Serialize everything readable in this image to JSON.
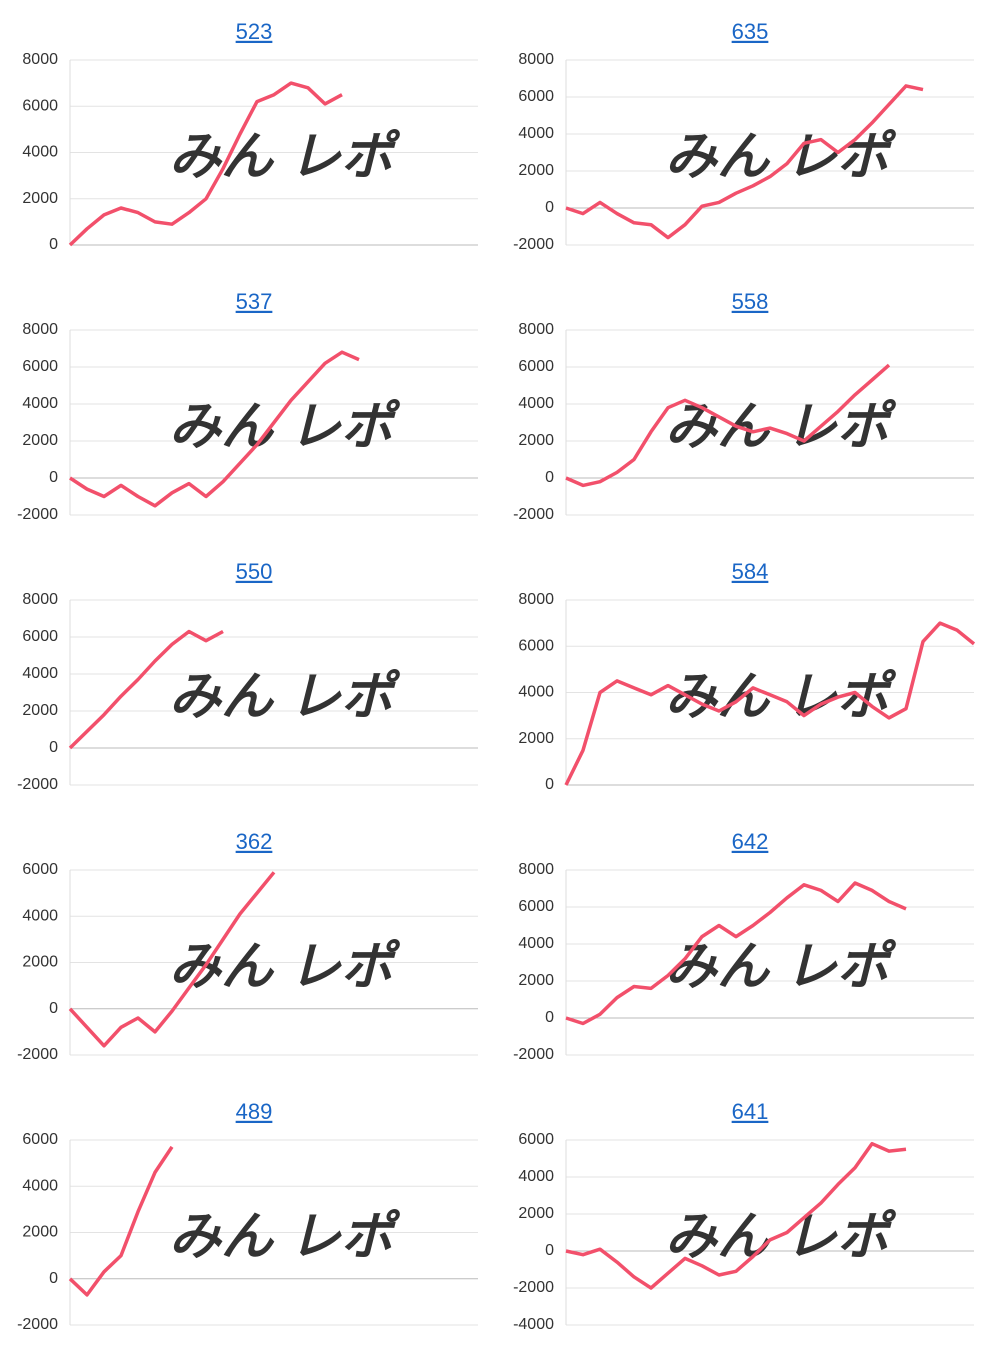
{
  "watermark": [
    "みん",
    "レポ"
  ],
  "chart_data": [
    {
      "type": "line",
      "title": "523",
      "color": "#f2506b",
      "ylim": [
        0,
        8000
      ],
      "yticks": [
        0,
        2000,
        4000,
        6000,
        8000
      ],
      "grid": true,
      "values": [
        0,
        700,
        1300,
        1600,
        1400,
        1000,
        900,
        1400,
        2000,
        3300,
        4800,
        6200,
        6500,
        7000,
        6800,
        6100,
        6500,
        null,
        null,
        null,
        null,
        null,
        null,
        null,
        null
      ]
    },
    {
      "type": "line",
      "title": "635",
      "color": "#f2506b",
      "ylim": [
        -2000,
        8000
      ],
      "yticks": [
        -2000,
        0,
        2000,
        4000,
        6000,
        8000
      ],
      "grid": true,
      "values": [
        0,
        -300,
        300,
        -300,
        -800,
        -900,
        -1600,
        -900,
        100,
        300,
        800,
        1200,
        1700,
        2400,
        3500,
        3700,
        3000,
        3700,
        4600,
        5600,
        6600,
        6400,
        null,
        null,
        null
      ]
    },
    {
      "type": "line",
      "title": "537",
      "color": "#f2506b",
      "ylim": [
        -2000,
        8000
      ],
      "yticks": [
        -2000,
        0,
        2000,
        4000,
        6000,
        8000
      ],
      "grid": true,
      "values": [
        0,
        -600,
        -1000,
        -400,
        -1000,
        -1500,
        -800,
        -300,
        -1000,
        -200,
        800,
        1800,
        3000,
        4200,
        5200,
        6200,
        6800,
        6400,
        null,
        null,
        null,
        null,
        null,
        null,
        null
      ]
    },
    {
      "type": "line",
      "title": "558",
      "color": "#f2506b",
      "ylim": [
        -2000,
        8000
      ],
      "yticks": [
        -2000,
        0,
        2000,
        4000,
        6000,
        8000
      ],
      "grid": true,
      "values": [
        0,
        -400,
        -200,
        300,
        1000,
        2500,
        3800,
        4200,
        3800,
        3300,
        2800,
        2500,
        2700,
        2400,
        2000,
        2800,
        3600,
        4500,
        5300,
        6100,
        null,
        null,
        null,
        null,
        null
      ]
    },
    {
      "type": "line",
      "title": "550",
      "color": "#f2506b",
      "ylim": [
        -2000,
        8000
      ],
      "yticks": [
        -2000,
        0,
        2000,
        4000,
        6000,
        8000
      ],
      "grid": true,
      "values": [
        0,
        900,
        1800,
        2800,
        3700,
        4700,
        5600,
        6300,
        5800,
        6300,
        null,
        null,
        null,
        null,
        null,
        null,
        null,
        null,
        null,
        null,
        null,
        null,
        null,
        null,
        null
      ]
    },
    {
      "type": "line",
      "title": "584",
      "color": "#f2506b",
      "ylim": [
        0,
        8000
      ],
      "yticks": [
        0,
        2000,
        4000,
        6000,
        8000
      ],
      "grid": true,
      "values": [
        0,
        1500,
        4000,
        4500,
        4200,
        3900,
        4300,
        3900,
        3500,
        3200,
        3600,
        4200,
        3900,
        3600,
        3000,
        3500,
        3800,
        4000,
        3400,
        2900,
        3300,
        6200,
        7000,
        6700,
        6100
      ]
    },
    {
      "type": "line",
      "title": "362",
      "color": "#f2506b",
      "ylim": [
        -2000,
        6000
      ],
      "yticks": [
        -2000,
        0,
        2000,
        4000,
        6000
      ],
      "grid": true,
      "values": [
        0,
        -800,
        -1600,
        -800,
        -400,
        -1000,
        -100,
        900,
        1900,
        3000,
        4100,
        5000,
        5900,
        null,
        null,
        null,
        null,
        null,
        null,
        null,
        null,
        null,
        null,
        null,
        null
      ]
    },
    {
      "type": "line",
      "title": "642",
      "color": "#f2506b",
      "ylim": [
        -2000,
        8000
      ],
      "yticks": [
        -2000,
        0,
        2000,
        4000,
        6000,
        8000
      ],
      "grid": true,
      "values": [
        0,
        -300,
        200,
        1100,
        1700,
        1600,
        2300,
        3200,
        4400,
        5000,
        4400,
        5000,
        5700,
        6500,
        7200,
        6900,
        6300,
        7300,
        6900,
        6300,
        5900,
        null,
        null,
        null,
        null
      ]
    },
    {
      "type": "line",
      "title": "489",
      "color": "#f2506b",
      "ylim": [
        -2000,
        6000
      ],
      "yticks": [
        -2000,
        0,
        2000,
        4000,
        6000
      ],
      "grid": true,
      "values": [
        0,
        -700,
        300,
        1000,
        2900,
        4600,
        5700,
        null,
        null,
        null,
        null,
        null,
        null,
        null,
        null,
        null,
        null,
        null,
        null,
        null,
        null,
        null,
        null,
        null,
        null
      ]
    },
    {
      "type": "line",
      "title": "641",
      "color": "#f2506b",
      "ylim": [
        -4000,
        6000
      ],
      "yticks": [
        -4000,
        -2000,
        0,
        2000,
        4000,
        6000
      ],
      "grid": true,
      "values": [
        0,
        -200,
        100,
        -600,
        -1400,
        -2000,
        -1200,
        -400,
        -800,
        -1300,
        -1100,
        -300,
        600,
        1000,
        1800,
        2600,
        3600,
        4500,
        5800,
        5400,
        5500,
        null,
        null,
        null,
        null
      ]
    }
  ]
}
